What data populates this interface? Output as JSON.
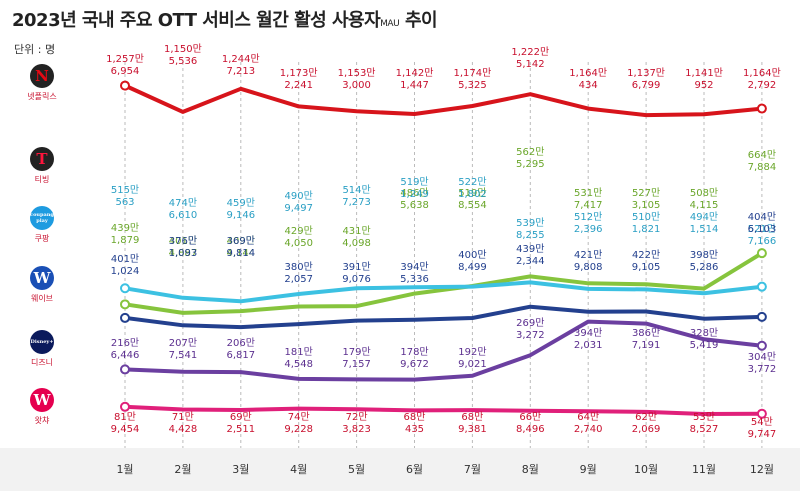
{
  "title": "2023년 국내 주요 OTT 서비스 월간 활성 사용자",
  "title_suffix": "MAU",
  "title_tail": "추이",
  "unit_label": "단위 : 명",
  "brands": [
    {
      "key": "netflix",
      "label": "넷플릭스",
      "logo_text": "N",
      "logo_bg": "#222222",
      "logo_fg": "#e50914",
      "label_color": "#c8102e"
    },
    {
      "key": "tving",
      "label": "티빙",
      "logo_text": "T",
      "logo_bg": "#222222",
      "logo_fg": "#ff153c",
      "label_color": "#c8102e"
    },
    {
      "key": "coupang",
      "label": "쿠팡",
      "logo_text": "coupang play",
      "logo_bg": "#1e9be0",
      "logo_fg": "#ffffff",
      "label_color": "#c8102e"
    },
    {
      "key": "wavve",
      "label": "웨이브",
      "logo_text": "W",
      "logo_bg": "#1a4fb5",
      "logo_fg": "#ffffff",
      "label_color": "#c8102e"
    },
    {
      "key": "disney",
      "label": "디즈니",
      "logo_text": "Disney+",
      "logo_bg": "#0b1a5c",
      "logo_fg": "#ffffff",
      "label_color": "#c8102e"
    },
    {
      "key": "watcha",
      "label": "왓챠",
      "logo_text": "W",
      "logo_bg": "#e5004f",
      "logo_fg": "#ffffff",
      "label_color": "#c8102e"
    }
  ],
  "chart_data": {
    "type": "line",
    "title": "2023년 국내 주요 OTT 서비스 월간 활성 사용자 MAU 추이",
    "xlabel": "",
    "ylabel": "단위 : 명",
    "categories": [
      "1월",
      "2월",
      "3월",
      "4월",
      "5월",
      "6월",
      "7월",
      "8월",
      "9월",
      "10월",
      "11월",
      "12월"
    ],
    "series": [
      {
        "name": "넷플릭스",
        "color": "#d7141b",
        "text_color": "#c8102e",
        "values": [
          12576954,
          11505536,
          12447213,
          11732241,
          11533000,
          11421447,
          11745325,
          12225142,
          11640434,
          11376799,
          11410952,
          11642792
        ],
        "labels_man": [
          "1,257만",
          "1,150만",
          "1,244만",
          "1,173만",
          "1,153만",
          "1,142만",
          "1,174만",
          "1,222만",
          "1,164만",
          "1,137만",
          "1,141만",
          "1,164만"
        ],
        "labels_rest": [
          "6,954",
          "5,536",
          "7,213",
          "2,241",
          "3,000",
          "1,447",
          "5,325",
          "5,142",
          "434",
          "6,799",
          "952",
          "2,792"
        ]
      },
      {
        "name": "티빙",
        "color": "#86c43d",
        "text_color": "#6aa62a",
        "values": [
          4391879,
          4014887,
          4094144,
          4294050,
          4314098,
          4865638,
          5198554,
          5625295,
          5317417,
          5273105,
          5084115,
          6647884
        ],
        "labels_man": [
          "439만",
          "401만",
          "409만",
          "429만",
          "431만",
          "486만",
          "519만",
          "562만",
          "531만",
          "527만",
          "508만",
          "664만"
        ],
        "labels_rest": [
          "1,879",
          "4,887",
          "4,144",
          "4,050",
          "4,098",
          "5,638",
          "8,554",
          "5,295",
          "7,417",
          "3,105",
          "4,115",
          "7,884"
        ]
      },
      {
        "name": "쿠팡플레이",
        "color": "#3cc1e2",
        "text_color": "#2a9fc4",
        "values": [
          5150563,
          4746610,
          4599146,
          4909497,
          5147273,
          5191249,
          5221802,
          5398255,
          5122396,
          5101821,
          4941514,
          5217166
        ],
        "labels_man": [
          "515만",
          "474만",
          "459만",
          "490만",
          "514만",
          "519만",
          "522만",
          "539만",
          "512만",
          "510만",
          "494만",
          "521만"
        ],
        "labels_rest": [
          "563",
          "6,610",
          "9,146",
          "9,497",
          "7,273",
          "1,249",
          "1,802",
          "8,255",
          "2,396",
          "1,821",
          "1,514",
          "7,166"
        ]
      },
      {
        "name": "웨이브",
        "color": "#23408e",
        "text_color": "#23408e",
        "values": [
          4011024,
          3761093,
          3699814,
          3802057,
          3919076,
          3945336,
          4008499,
          4392344,
          4219808,
          4229105,
          3985286,
          4046103
        ],
        "labels_man": [
          "401만",
          "376만",
          "369만",
          "380만",
          "391만",
          "394만",
          "400만",
          "439만",
          "421만",
          "422만",
          "398만",
          "404만"
        ],
        "labels_rest": [
          "1,024",
          "1,093",
          "9,814",
          "2,057",
          "9,076",
          "5,336",
          "8,499",
          "2,344",
          "9,808",
          "9,105",
          "5,286",
          "6,103"
        ]
      },
      {
        "name": "디즈니+",
        "color": "#6b3fa0",
        "text_color": "#5b2f8f",
        "values": [
          2166446,
          2077541,
          2066817,
          1814548,
          1797157,
          1789672,
          1929021,
          2693272,
          3942031,
          3867191,
          3285419,
          3043772
        ],
        "labels_man": [
          "216만",
          "207만",
          "206만",
          "181만",
          "179만",
          "178만",
          "192만",
          "269만",
          "394만",
          "386만",
          "328만",
          "304만"
        ],
        "labels_rest": [
          "6,446",
          "7,541",
          "6,817",
          "4,548",
          "7,157",
          "9,672",
          "9,021",
          "3,272",
          "2,031",
          "7,191",
          "5,419",
          "3,772"
        ]
      },
      {
        "name": "왓챠",
        "color": "#e0207a",
        "text_color": "#c8102e",
        "values": [
          819454,
          714428,
          692511,
          749228,
          723823,
          680435,
          689381,
          668496,
          642740,
          622069,
          538527,
          549747
        ],
        "labels_man": [
          "81만",
          "71만",
          "69만",
          "74만",
          "72만",
          "68만",
          "68만",
          "66만",
          "64만",
          "62만",
          "53만",
          "54만"
        ],
        "labels_rest": [
          "9,454",
          "4,428",
          "2,511",
          "9,228",
          "3,823",
          "435",
          "9,381",
          "8,496",
          "2,740",
          "2,069",
          "8,527",
          "9,747"
        ]
      }
    ]
  }
}
